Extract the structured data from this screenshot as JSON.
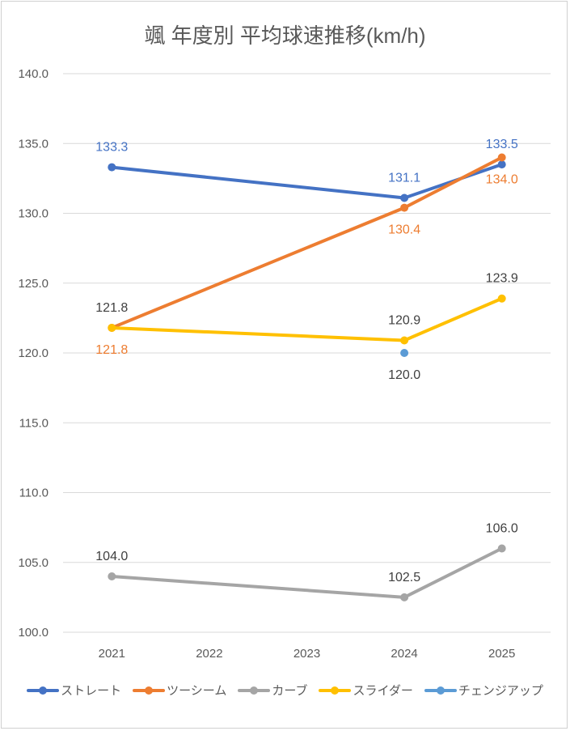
{
  "chart_data": {
    "type": "line",
    "title": "颯 年度別 平均球速推移(km/h)",
    "xlabel": "",
    "ylabel": "",
    "categories": [
      "2021",
      "2022",
      "2023",
      "2024",
      "2025"
    ],
    "ylim": [
      100,
      140
    ],
    "yticks": [
      "100.0",
      "105.0",
      "110.0",
      "115.0",
      "120.0",
      "125.0",
      "130.0",
      "135.0",
      "140.0"
    ],
    "grid": true,
    "legend_position": "bottom",
    "series": [
      {
        "name": "ストレート",
        "color": "#4472C4",
        "label_color": "#4472C4",
        "label_pos": "above",
        "values": [
          133.3,
          null,
          null,
          131.1,
          133.5
        ],
        "labels": [
          "133.3",
          null,
          null,
          "131.1",
          "133.5"
        ]
      },
      {
        "name": "ツーシーム",
        "color": "#ED7D31",
        "label_color": "#ED7D31",
        "label_pos": "below",
        "values": [
          121.8,
          null,
          null,
          130.4,
          134.0
        ],
        "labels": [
          "121.8",
          null,
          null,
          "130.4",
          "134.0"
        ]
      },
      {
        "name": "カーブ",
        "color": "#A5A5A5",
        "label_color": "#404040",
        "label_pos": "above",
        "values": [
          104.0,
          null,
          null,
          102.5,
          106.0
        ],
        "labels": [
          "104.0",
          null,
          null,
          "102.5",
          "106.0"
        ]
      },
      {
        "name": "スライダー",
        "color": "#FFC000",
        "label_color": "#404040",
        "label_pos": "above",
        "values": [
          121.8,
          null,
          null,
          120.9,
          123.9
        ],
        "labels": [
          "121.8",
          null,
          null,
          "120.9",
          "123.9"
        ]
      },
      {
        "name": "チェンジアップ",
        "color": "#5B9BD5",
        "label_color": "#404040",
        "label_pos": "below",
        "values": [
          null,
          null,
          null,
          120.0,
          null
        ],
        "labels": [
          null,
          null,
          null,
          "120.0",
          null
        ]
      }
    ]
  }
}
